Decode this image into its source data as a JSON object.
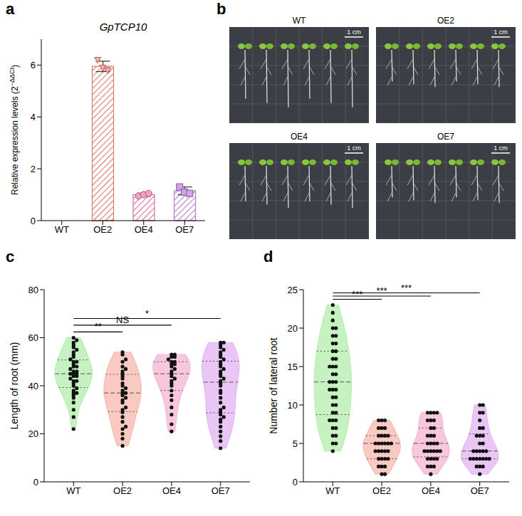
{
  "chart_data": [
    {
      "panel_label": "a",
      "type": "bar",
      "title": "GpTCP10",
      "ylabel": "Relative expression levels (2−ΔΔCt)",
      "categories": [
        "WT",
        "OE2",
        "OE4",
        "OE7"
      ],
      "values": [
        0,
        5.95,
        1.0,
        1.15
      ],
      "errors": [
        0,
        0.2,
        0.06,
        0.15
      ],
      "points": [
        [],
        [
          6.2,
          5.9,
          5.8
        ],
        [
          0.95,
          1.0,
          1.05
        ],
        [
          1.3,
          1.1,
          1.05
        ]
      ],
      "colors": [
        "#e07a6a",
        "#e07a6a",
        "#d8709e",
        "#b57cc8"
      ],
      "ylim": [
        0,
        7
      ],
      "yticks": [
        0,
        2,
        4,
        6
      ]
    },
    {
      "panel_label": "c",
      "type": "violin",
      "ylabel": "Length of root (mm)",
      "categories": [
        "WT",
        "OE2",
        "OE4",
        "OE7"
      ],
      "values": [
        [
          22,
          27,
          30,
          33,
          35,
          36,
          37,
          37,
          38,
          39,
          40,
          41,
          42,
          42,
          43,
          44,
          44,
          45,
          45,
          45,
          46,
          46,
          47,
          48,
          48,
          49,
          50,
          50,
          51,
          52,
          53,
          54,
          55,
          56,
          57,
          58,
          59,
          60
        ],
        [
          15,
          18,
          20,
          22,
          23,
          25,
          27,
          29,
          30,
          31,
          33,
          34,
          35,
          36,
          37,
          37,
          38,
          39,
          40,
          41,
          43,
          44,
          45,
          46,
          47,
          48,
          50,
          51,
          53,
          54
        ],
        [
          21,
          24,
          28,
          31,
          34,
          36,
          38,
          40,
          41,
          42,
          43,
          44,
          45,
          46,
          47,
          48,
          49,
          49,
          50,
          50,
          51,
          52,
          52,
          53,
          53
        ],
        [
          14,
          17,
          19,
          21,
          23,
          25,
          26,
          27,
          28,
          29,
          30,
          31,
          33,
          35,
          37,
          38,
          40,
          41,
          42,
          43,
          44,
          45,
          46,
          47,
          48,
          49,
          50,
          51,
          52,
          53,
          54,
          55,
          56,
          57,
          58,
          58
        ]
      ],
      "colors": [
        "#b8efb2",
        "#f7bcb3",
        "#f6b9d4",
        "#e3b8f2"
      ],
      "ylim": [
        0,
        80
      ],
      "yticks": [
        0,
        20,
        40,
        60,
        80
      ],
      "annotations": [
        {
          "from": "WT",
          "to": "OE2",
          "label": "**"
        },
        {
          "from": "WT",
          "to": "OE4",
          "label": "NS"
        },
        {
          "from": "WT",
          "to": "OE7",
          "label": "*"
        }
      ]
    },
    {
      "panel_label": "d",
      "type": "violin",
      "ylabel": "Number of lateral root",
      "categories": [
        "WT",
        "OE2",
        "OE4",
        "OE7"
      ],
      "values": [
        [
          4,
          5,
          5,
          6,
          6,
          7,
          7,
          8,
          8,
          8,
          9,
          9,
          10,
          10,
          11,
          11,
          12,
          12,
          12,
          13,
          13,
          13,
          14,
          14,
          15,
          15,
          15,
          16,
          16,
          17,
          17,
          18,
          18,
          19,
          19,
          20,
          20,
          21,
          22,
          23
        ],
        [
          1,
          1,
          2,
          2,
          2,
          3,
          3,
          3,
          3,
          4,
          4,
          4,
          4,
          4,
          5,
          5,
          5,
          5,
          5,
          5,
          6,
          6,
          6,
          6,
          7,
          7,
          7,
          8,
          8,
          8
        ],
        [
          1,
          2,
          2,
          2,
          3,
          3,
          3,
          3,
          4,
          4,
          4,
          4,
          4,
          4,
          5,
          5,
          5,
          5,
          6,
          6,
          6,
          7,
          7,
          8,
          8,
          8,
          9,
          9,
          9,
          9
        ],
        [
          1,
          2,
          2,
          2,
          3,
          3,
          3,
          3,
          3,
          3,
          3,
          4,
          4,
          4,
          4,
          4,
          5,
          5,
          6,
          6,
          6,
          7,
          7,
          8,
          9,
          9,
          10,
          10
        ]
      ],
      "colors": [
        "#b8efb2",
        "#f7bcb3",
        "#f6b9d4",
        "#e3b8f2"
      ],
      "ylim": [
        0,
        25
      ],
      "yticks": [
        0,
        5,
        10,
        15,
        20,
        25
      ],
      "annotations": [
        {
          "from": "WT",
          "to": "OE2",
          "label": "***"
        },
        {
          "from": "WT",
          "to": "OE4",
          "label": "***"
        },
        {
          "from": "WT",
          "to": "OE7",
          "label": "***"
        }
      ]
    }
  ],
  "photos": {
    "panel_label": "b",
    "panels": [
      {
        "title": "WT",
        "scale_bar": "1 cm"
      },
      {
        "title": "OE2",
        "scale_bar": "1 cm"
      },
      {
        "title": "OE4",
        "scale_bar": "1 cm"
      },
      {
        "title": "OE7",
        "scale_bar": "1 cm"
      }
    ]
  }
}
